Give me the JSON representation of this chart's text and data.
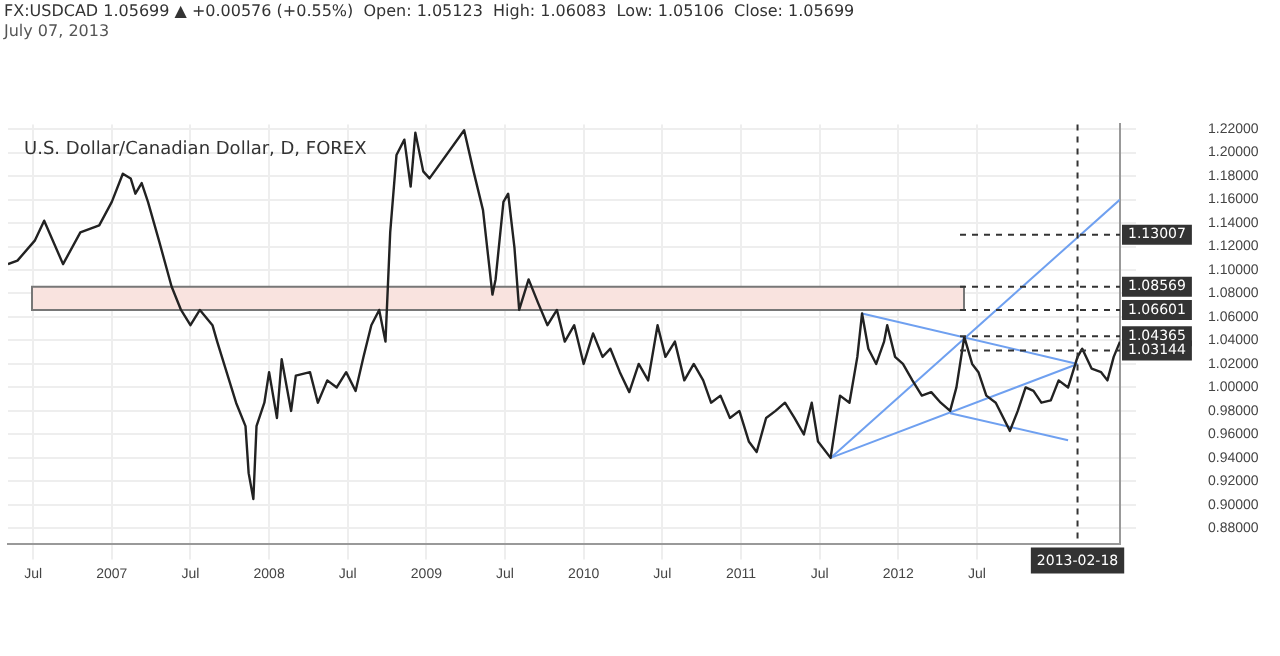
{
  "chart_data": {
    "type": "line",
    "title": "U.S. Dollar/Canadian Dollar, D, FOREX",
    "subtitle": "FX:USDCAD 1.05699 ▲ +0.00576 (+0.55%)  Open: 1.05123  High: 1.06083  Low: 1.05106  Close: 1.05699",
    "annotations": [
      "July 07, 2013"
    ],
    "series": [
      {
        "color": "#222222",
        "x": [
          2006.34,
          2006.4,
          2006.51,
          2006.57,
          2006.69,
          2006.8,
          2006.92,
          2007.0,
          2007.07,
          2007.12,
          2007.15,
          2007.19,
          2007.23,
          2007.3,
          2007.38,
          2007.44,
          2007.5,
          2007.56,
          2007.64,
          2007.67,
          2007.73,
          2007.79,
          2007.85,
          2007.87,
          2007.9,
          2007.92,
          2007.97,
          2008.0,
          2008.05,
          2008.08,
          2008.14,
          2008.17,
          2008.26,
          2008.31,
          2008.37,
          2008.43,
          2008.49,
          2008.55,
          2008.6,
          2008.65,
          2008.7,
          2008.74,
          2008.77,
          2008.81,
          2008.86,
          2008.9,
          2008.93,
          2008.98,
          2009.02,
          2009.24,
          2009.3,
          2009.36,
          2009.42,
          2009.44,
          2009.49,
          2009.52,
          2009.56,
          2009.59,
          2009.65,
          2009.71,
          2009.77,
          2009.83,
          2009.88,
          2009.94,
          2010.0,
          2010.06,
          2010.12,
          2010.17,
          2010.23,
          2010.29,
          2010.35,
          2010.41,
          2010.47,
          2010.52,
          2010.58,
          2010.64,
          2010.7,
          2010.76,
          2010.81,
          2010.87,
          2010.93,
          2010.99,
          2011.05,
          2011.1,
          2011.16,
          2011.22,
          2011.28,
          2011.34,
          2011.4,
          2011.45,
          2011.49,
          2011.57,
          2011.63,
          2011.69,
          2011.74,
          2011.77,
          2011.81,
          2011.86,
          2011.91,
          2011.93,
          2011.98,
          2012.03,
          2012.09,
          2012.15,
          2012.21,
          2012.27,
          2012.33,
          2012.37,
          2012.42,
          2012.47,
          2012.51,
          2012.56,
          2012.62,
          2012.71,
          2012.76,
          2012.81,
          2012.86,
          2012.91,
          2012.97,
          2013.02,
          2013.08,
          2013.14,
          2013.17,
          2013.23,
          2013.29,
          2013.33,
          2013.37,
          2013.41
        ],
        "values": [
          1.105,
          1.108,
          1.125,
          1.142,
          1.105,
          1.132,
          1.138,
          1.158,
          1.182,
          1.178,
          1.165,
          1.174,
          1.158,
          1.125,
          1.086,
          1.066,
          1.053,
          1.066,
          1.053,
          1.039,
          1.013,
          0.987,
          0.967,
          0.927,
          0.905,
          0.967,
          0.987,
          1.013,
          0.974,
          1.024,
          0.98,
          1.01,
          1.013,
          0.987,
          1.006,
          1.0,
          1.013,
          0.997,
          1.026,
          1.053,
          1.066,
          1.039,
          1.132,
          1.198,
          1.211,
          1.171,
          1.217,
          1.184,
          1.178,
          1.219,
          1.184,
          1.151,
          1.079,
          1.092,
          1.158,
          1.165,
          1.119,
          1.066,
          1.092,
          1.072,
          1.053,
          1.066,
          1.039,
          1.053,
          1.02,
          1.046,
          1.026,
          1.033,
          1.013,
          0.996,
          1.02,
          1.006,
          1.053,
          1.026,
          1.039,
          1.006,
          1.02,
          1.006,
          0.987,
          0.993,
          0.974,
          0.98,
          0.954,
          0.945,
          0.974,
          0.98,
          0.987,
          0.974,
          0.96,
          0.987,
          0.954,
          0.94,
          0.993,
          0.987,
          1.026,
          1.063,
          1.033,
          1.02,
          1.039,
          1.053,
          1.026,
          1.02,
          1.006,
          0.993,
          0.996,
          0.987,
          0.98,
          1.0,
          1.043,
          1.02,
          1.013,
          0.993,
          0.987,
          0.963,
          0.98,
          1.0,
          0.997,
          0.987,
          0.989,
          1.006,
          1.0,
          1.026,
          1.033,
          1.016,
          1.013,
          1.006,
          1.026,
          1.039
        ]
      },
      {
        "type": "line",
        "color": "#6fa0f0",
        "x": [
          2011.57,
          2013.41
        ],
        "values": [
          0.94,
          1.16
        ]
      },
      {
        "type": "line",
        "color": "#6fa0f0",
        "x": [
          2011.57,
          2013.14
        ],
        "values": [
          0.94,
          1.02
        ]
      },
      {
        "type": "line",
        "color": "#6fa0f0",
        "x": [
          2011.77,
          2013.14
        ],
        "values": [
          1.063,
          1.02
        ]
      },
      {
        "type": "line",
        "color": "#6fa0f0",
        "x": [
          2012.33,
          2013.08
        ],
        "values": [
          0.978,
          0.955
        ]
      }
    ],
    "xlim": [
      2006.34,
      2013.41
    ],
    "xticks": [
      {
        "value": 2006.5,
        "label": "Jul"
      },
      2007,
      {
        "value": 2007.5,
        "label": "Jul"
      },
      2008,
      {
        "value": 2008.5,
        "label": "Jul"
      },
      2009,
      {
        "value": 2009.5,
        "label": "Jul"
      },
      2010,
      {
        "value": 2010.5,
        "label": "Jul"
      },
      2011,
      {
        "value": 2011.5,
        "label": "Jul"
      },
      2012,
      {
        "value": 2012.5,
        "label": "Jul"
      }
    ],
    "ylim": [
      0.867,
      1.224
    ],
    "yticks": [
      {
        "value": 0.88,
        "label": "0.88000"
      },
      {
        "value": 0.9,
        "label": "0.90000"
      },
      {
        "value": 0.92,
        "label": "0.92000"
      },
      {
        "value": 0.94,
        "label": "0.94000"
      },
      {
        "value": 0.96,
        "label": "0.96000"
      },
      {
        "value": 0.98,
        "label": "0.98000"
      },
      {
        "value": 1.0,
        "label": "1.00000"
      },
      {
        "value": 1.02,
        "label": "1.02000"
      },
      {
        "value": 1.04,
        "label": "1.04000"
      },
      {
        "value": 1.06,
        "label": "1.06000"
      },
      {
        "value": 1.08,
        "label": "1.08000"
      },
      {
        "value": 1.1,
        "label": "1.10000"
      },
      {
        "value": 1.12,
        "label": "1.12000"
      },
      {
        "value": 1.14,
        "label": "1.14000"
      },
      {
        "value": 1.16,
        "label": "1.16000"
      },
      {
        "value": 1.18,
        "label": "1.18000"
      },
      {
        "value": 1.2,
        "label": "1.20000"
      },
      {
        "value": 1.22,
        "label": "1.22000"
      }
    ],
    "ref_lines": [
      {
        "axis": "y",
        "value": 1.13007,
        "label": "1.13007",
        "line_style": "dashed",
        "color": "#333333"
      },
      {
        "axis": "y",
        "value": 1.08569,
        "label": "1.08569",
        "line_style": "dashed",
        "color": "#333333"
      },
      {
        "axis": "y",
        "value": 1.06601,
        "label": "1.06601",
        "line_style": "dashed",
        "color": "#333333"
      },
      {
        "axis": "y",
        "value": 1.04365,
        "label": "1.04365",
        "line_style": "dashed",
        "color": "#333333"
      },
      {
        "axis": "y",
        "value": 1.03144,
        "label": "1.03144",
        "line_style": "dashed",
        "color": "#333333"
      },
      {
        "axis": "x",
        "value": 2013.14,
        "label": "2013-02-18",
        "line_style": "dashed",
        "color": "#333333"
      }
    ],
    "bands": [
      {
        "axis": "y",
        "from": 1.06601,
        "to": 1.08569,
        "color": "#f9e3df"
      }
    ],
    "grid": true,
    "legend": false,
    "marker": "none",
    "line_style": "solid"
  }
}
